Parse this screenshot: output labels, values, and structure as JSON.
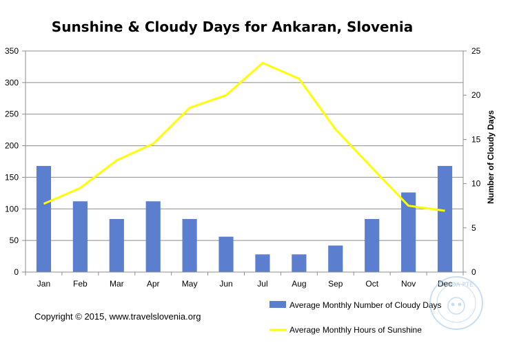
{
  "chart_data": {
    "type": "bar+line",
    "title": "Sunshine & Cloudy Days for Ankaran, Slovenia",
    "categories": [
      "Jan",
      "Feb",
      "Mar",
      "Apr",
      "May",
      "Jun",
      "Jul",
      "Aug",
      "Sep",
      "Oct",
      "Nov",
      "Dec"
    ],
    "series": [
      {
        "name": "Average Monthly Number of Cloudy Days",
        "type": "bar",
        "axis": "right",
        "color": "#5b7fce",
        "values": [
          12,
          8,
          6,
          8,
          6,
          4,
          2,
          2,
          3,
          6,
          9,
          12
        ]
      },
      {
        "name": "Average Monthly Hours of Sunshine",
        "type": "line",
        "axis": "left",
        "color": "#ffff00",
        "values": [
          108,
          133,
          177,
          203,
          260,
          280,
          331,
          306,
          226,
          165,
          105,
          97
        ]
      }
    ],
    "y_left": {
      "label": "",
      "range": [
        0,
        350
      ],
      "ticks": [
        0,
        50,
        100,
        150,
        200,
        250,
        300,
        350
      ]
    },
    "y_right": {
      "label": "Number of Cloudy Days",
      "range": [
        0,
        25
      ],
      "ticks": [
        0,
        5,
        10,
        15,
        20,
        25
      ]
    },
    "grid": true,
    "legend_position": "bottom-right"
  },
  "footer": {
    "copyright": "Copyright © 2015, www.travelslovenia.org"
  },
  "watermark": {
    "text": "PANDA PTE"
  }
}
